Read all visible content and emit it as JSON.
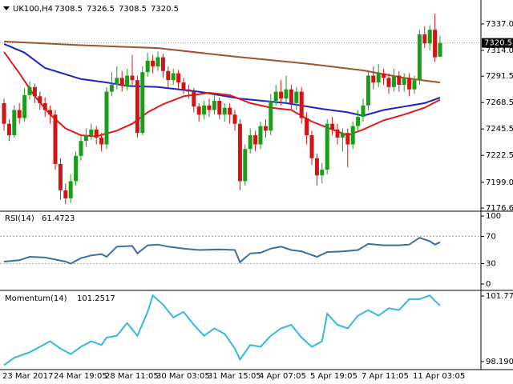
{
  "chart_data": [
    {
      "type": "candlestick",
      "title": "UK100,H4",
      "categories": [
        "23 Mar 2017",
        null,
        null,
        null,
        null,
        null,
        null,
        null,
        null,
        null,
        "24 Mar 19:05",
        null,
        null,
        null,
        null,
        null,
        null,
        null,
        null,
        null,
        "28 Mar 11:05",
        null,
        null,
        null,
        null,
        null,
        null,
        null,
        null,
        null,
        "30 Mar 03:05",
        null,
        null,
        null,
        null,
        null,
        null,
        null,
        null,
        null,
        "31 Mar 15:05",
        null,
        null,
        null,
        null,
        null,
        null,
        null,
        null,
        null,
        "4 Apr 07:05",
        null,
        null,
        null,
        null,
        null,
        null,
        null,
        null,
        null,
        "5 Apr 19:05",
        null,
        null,
        null,
        null,
        null,
        null,
        null,
        null,
        null,
        "7 Apr 11:05",
        null,
        null,
        null,
        null,
        null,
        null,
        null,
        null,
        null,
        "11 Apr 03:05",
        null,
        null,
        null,
        null,
        null
      ],
      "open": [
        7268,
        7250,
        7240,
        7262,
        7255,
        7275,
        7282,
        7274,
        7268,
        7262,
        7258,
        7215,
        7192,
        7185,
        7200,
        7222,
        7235,
        7240,
        7245,
        7238,
        7232,
        7278,
        7284,
        7290,
        7283,
        7292,
        7288,
        7242,
        7295,
        7305,
        7300,
        7308,
        7296,
        7288,
        7294,
        7286,
        7280,
        7278,
        7265,
        7258,
        7266,
        7262,
        7270,
        7258,
        7264,
        7258,
        7250,
        7200,
        7228,
        7240,
        7232,
        7248,
        7244,
        7270,
        7278,
        7272,
        7280,
        7268,
        7278,
        7255,
        7240,
        7220,
        7205,
        7210,
        7250,
        7245,
        7238,
        7242,
        7232,
        7248,
        7256,
        7266,
        7292,
        7286,
        7294,
        7290,
        7282,
        7292,
        7284,
        7290,
        7280,
        7288,
        7328,
        7320,
        7332,
        7308.5
      ],
      "high": [
        7272,
        7254,
        7266,
        7268,
        7281,
        7287,
        7285,
        7278,
        7273,
        7266,
        7262,
        7220,
        7198,
        7206,
        7226,
        7240,
        7246,
        7250,
        7248,
        7242,
        7282,
        7295,
        7300,
        7296,
        7298,
        7310,
        7292,
        7300,
        7312,
        7310,
        7313,
        7311,
        7300,
        7298,
        7297,
        7290,
        7284,
        7281,
        7268,
        7270,
        7272,
        7275,
        7273,
        7268,
        7268,
        7262,
        7254,
        7232,
        7246,
        7244,
        7252,
        7254,
        7276,
        7284,
        7288,
        7292,
        7284,
        7282,
        7282,
        7260,
        7244,
        7224,
        7216,
        7254,
        7256,
        7250,
        7246,
        7246,
        7252,
        7262,
        7272,
        7296,
        7300,
        7302,
        7298,
        7294,
        7298,
        7296,
        7294,
        7294,
        7292,
        7332,
        7335,
        7336,
        7346,
        7326.5
      ],
      "low": [
        7244,
        7235,
        7238,
        7250,
        7252,
        7271,
        7268,
        7262,
        7256,
        7250,
        7210,
        7184,
        7180,
        7181,
        7196,
        7218,
        7230,
        7236,
        7232,
        7226,
        7228,
        7274,
        7280,
        7278,
        7279,
        7284,
        7238,
        7240,
        7291,
        7294,
        7296,
        7290,
        7282,
        7284,
        7280,
        7276,
        7272,
        7260,
        7252,
        7254,
        7256,
        7258,
        7254,
        7252,
        7250,
        7244,
        7192,
        7196,
        7224,
        7226,
        7228,
        7238,
        7240,
        7266,
        7266,
        7268,
        7262,
        7262,
        7250,
        7232,
        7214,
        7196,
        7198,
        7206,
        7240,
        7232,
        7226,
        7212,
        7228,
        7244,
        7252,
        7262,
        7280,
        7282,
        7284,
        7276,
        7278,
        7278,
        7278,
        7274,
        7276,
        7284,
        7316,
        7314,
        7304,
        7308.5
      ],
      "close": [
        7250,
        7240,
        7262,
        7255,
        7275,
        7282,
        7274,
        7268,
        7262,
        7258,
        7215,
        7192,
        7185,
        7200,
        7222,
        7235,
        7240,
        7245,
        7238,
        7232,
        7278,
        7284,
        7290,
        7283,
        7292,
        7288,
        7242,
        7295,
        7305,
        7300,
        7308,
        7296,
        7288,
        7294,
        7286,
        7280,
        7278,
        7265,
        7258,
        7266,
        7262,
        7270,
        7258,
        7264,
        7258,
        7250,
        7200,
        7228,
        7240,
        7232,
        7248,
        7244,
        7270,
        7278,
        7272,
        7280,
        7268,
        7278,
        7255,
        7240,
        7220,
        7205,
        7210,
        7250,
        7245,
        7238,
        7242,
        7232,
        7248,
        7256,
        7266,
        7292,
        7286,
        7294,
        7290,
        7282,
        7292,
        7284,
        7290,
        7280,
        7288,
        7328,
        7320,
        7332,
        7308,
        7320.5
      ],
      "up_color": "#1a9e1a",
      "down_color": "#d41414",
      "bid": 7320.5,
      "overlays": [
        {
          "color": "#a0522d",
          "x": [
            0,
            15,
            30,
            45,
            60,
            70,
            78,
            85
          ],
          "values": [
            7321.7,
            7318.5,
            7316,
            7308.5,
            7302,
            7296.5,
            7290,
            7286
          ]
        },
        {
          "color": "#1c23c8",
          "x": [
            0,
            4,
            8,
            15,
            20,
            24,
            30,
            38,
            46,
            55,
            62,
            67,
            70,
            74,
            78,
            82,
            85
          ],
          "values": [
            7319.6,
            7312,
            7298.6,
            7289,
            7286,
            7283,
            7282,
            7278,
            7272,
            7268,
            7263,
            7260,
            7257,
            7262,
            7265,
            7268,
            7272.8
          ]
        },
        {
          "color": "#e21a1a",
          "x": [
            0,
            3,
            6,
            9,
            12,
            15,
            18,
            22,
            25,
            28,
            31,
            35,
            40,
            44,
            48,
            52,
            56,
            60,
            64,
            67,
            70,
            74,
            78,
            82,
            85
          ],
          "values": [
            7312.6,
            7294,
            7274,
            7258,
            7246,
            7240,
            7239,
            7244,
            7250,
            7260,
            7267,
            7274,
            7277,
            7275,
            7268,
            7264,
            7262,
            7252,
            7245,
            7240,
            7245,
            7253,
            7258,
            7264,
            7271
          ]
        }
      ],
      "ylim": [
        7173.8,
        7355.1
      ],
      "yticks": [
        {
          "value": 7337,
          "label": "7337.0"
        },
        {
          "value": 7314,
          "label": "7314.0"
        },
        7291.5,
        7268.5,
        7245.5,
        7222.5,
        {
          "value": 7199,
          "label": "7199.0"
        },
        7176.6
      ]
    },
    {
      "type": "line",
      "title": "RSI(14)",
      "last_value": 61.4723,
      "color": "#3a6ea5",
      "x": [
        0,
        3,
        5,
        8,
        10,
        12,
        13,
        15,
        17,
        19,
        20,
        22,
        25,
        26,
        28,
        30,
        32,
        35,
        38,
        42,
        45,
        46,
        48,
        50,
        52,
        54,
        56,
        58,
        61,
        63,
        66,
        69,
        71,
        74,
        77,
        79,
        81,
        83,
        84,
        85
      ],
      "values": [
        33,
        35,
        40,
        39,
        36,
        33,
        30,
        38,
        42,
        44,
        40,
        55,
        56,
        45,
        57,
        58,
        55,
        52,
        50,
        51,
        50,
        32,
        45,
        46,
        52,
        55,
        50,
        48,
        40,
        47,
        48,
        50,
        59,
        57,
        57,
        58,
        68,
        63,
        58,
        61.47
      ],
      "levels": [
        70,
        30
      ],
      "ylim": [
        -8.2,
        105.9
      ],
      "yticks": [
        100,
        70,
        30,
        0
      ]
    },
    {
      "type": "line",
      "title": "Momentum(14)",
      "last_value": 101.2517,
      "color": "#35b8dc",
      "x": [
        0,
        2,
        5,
        7,
        9,
        11,
        13,
        15,
        17,
        19,
        20,
        22,
        24,
        26,
        28,
        29,
        31,
        33,
        35,
        37,
        39,
        41,
        43,
        45,
        46,
        48,
        50,
        52,
        54,
        56,
        58,
        60,
        62,
        63,
        65,
        67,
        69,
        71,
        73,
        75,
        77,
        79,
        81,
        83,
        84,
        85
      ],
      "values": [
        98.0,
        98.4,
        98.7,
        99.0,
        99.3,
        98.9,
        98.6,
        99.0,
        99.3,
        99.1,
        99.5,
        99.6,
        100.3,
        99.6,
        100.9,
        101.8,
        101.3,
        100.6,
        100.9,
        100.2,
        99.6,
        100.0,
        99.7,
        98.9,
        98.3,
        99.1,
        99.0,
        99.6,
        100.0,
        100.2,
        99.5,
        99.0,
        99.3,
        100.8,
        100.2,
        100.0,
        100.7,
        101.0,
        100.7,
        101.1,
        101.0,
        101.6,
        101.6,
        101.8,
        101.5,
        101.25
      ],
      "ylim": [
        97.754,
        101.988
      ],
      "yticks": [
        101.7701,
        98.1905
      ]
    }
  ]
}
